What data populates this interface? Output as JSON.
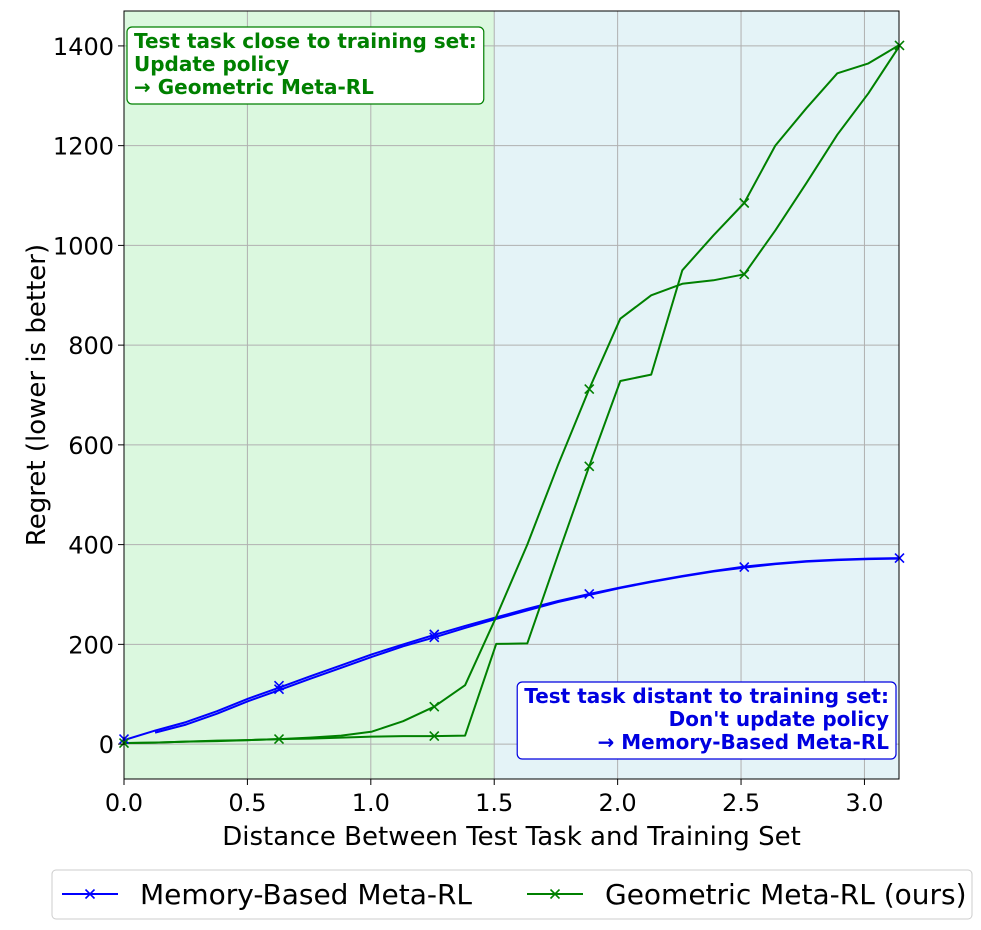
{
  "chart_data": {
    "type": "line",
    "xlabel": "Distance Between Test Task and Training Set",
    "ylabel": "Regret (lower is better)",
    "xlim": [
      0.0,
      3.14
    ],
    "ylim": [
      -70,
      1470
    ],
    "grid": true,
    "xticks": [
      0.0,
      0.5,
      1.0,
      1.5,
      2.0,
      2.5,
      3.0
    ],
    "xtick_labels": [
      "0.0",
      "0.5",
      "1.0",
      "1.5",
      "2.0",
      "2.5",
      "3.0"
    ],
    "yticks": [
      0,
      200,
      400,
      600,
      800,
      1000,
      1200,
      1400
    ],
    "ytick_labels": [
      "0",
      "200",
      "400",
      "600",
      "800",
      "1000",
      "1200",
      "1400"
    ],
    "regions": [
      {
        "x_from": 0.0,
        "x_to": 1.5,
        "color": "#dbf8df"
      },
      {
        "x_from": 1.5,
        "x_to": 3.14,
        "color": "#e4f3f7"
      }
    ],
    "annotations": [
      {
        "lines": [
          "Test task close to training set:",
          "Update policy",
          "→ Geometric Meta-RL"
        ],
        "color": "#008000",
        "position": "top-left"
      },
      {
        "lines": [
          "Test task distant to training set:",
          "Don't update policy",
          "→ Memory-Based Meta-RL"
        ],
        "color": "#0000e0",
        "position": "bottom-right"
      }
    ],
    "legend": {
      "placement": "bottom-outside",
      "ncol": 2
    },
    "series": [
      {
        "name": "Memory-Based Meta-RL",
        "color": "#0000ff",
        "marker": "x",
        "lines": [
          {
            "x": [
              0.0,
              0.126,
              0.251,
              0.377,
              0.503,
              0.628,
              0.754,
              0.88,
              1.005,
              1.131,
              1.257,
              1.382,
              1.508,
              1.634,
              1.759,
              1.885,
              2.011,
              2.136,
              2.262,
              2.388,
              2.513,
              2.639,
              2.765,
              2.89,
              3.016,
              3.142
            ],
            "y": [
              8,
              27,
              44,
              66,
              91,
              113,
              136,
              158,
              180,
              200,
              219,
              237,
              254,
              271,
              287,
              301,
              314,
              326,
              337,
              347,
              356,
              362,
              367,
              370,
              372,
              373
            ]
          },
          {
            "x": [
              0.126,
              0.251,
              0.377,
              0.503,
              0.628,
              0.754,
              0.88,
              1.005,
              1.131,
              1.257,
              1.382,
              1.508,
              1.634,
              1.759,
              1.885,
              2.011,
              2.136,
              2.262,
              2.388,
              2.513,
              2.639,
              2.765,
              2.89,
              3.016,
              3.142
            ],
            "y": [
              23,
              39,
              61,
              86,
              108,
              131,
              153,
              175,
              196,
              214,
              233,
              251,
              268,
              285,
              299,
              313,
              325,
              336,
              346,
              354,
              361,
              366,
              369,
              371,
              372
            ]
          }
        ],
        "marker_points": [
          {
            "x": 0.0,
            "y": 10
          },
          {
            "x": 0.628,
            "y": 117
          },
          {
            "x": 0.628,
            "y": 110
          },
          {
            "x": 1.257,
            "y": 220
          },
          {
            "x": 1.257,
            "y": 214
          },
          {
            "x": 1.885,
            "y": 301
          },
          {
            "x": 2.513,
            "y": 355
          },
          {
            "x": 3.142,
            "y": 373
          }
        ]
      },
      {
        "name": "Geometric Meta-RL (ours)",
        "color": "#008000",
        "marker": "x",
        "lines": [
          {
            "x": [
              0.0,
              0.126,
              0.251,
              0.377,
              0.503,
              0.628,
              0.754,
              0.88,
              1.005,
              1.131,
              1.257,
              1.382,
              1.508,
              1.634,
              1.759,
              1.885,
              2.011,
              2.136,
              2.262,
              2.388,
              2.513,
              2.639,
              2.765,
              2.89,
              3.016,
              3.142
            ],
            "y": [
              2,
              3,
              5,
              7,
              8,
              10,
              13,
              17,
              25,
              46,
              75,
              118,
              255,
              400,
              560,
              712,
              853,
              900,
              923,
              930,
              942,
              1030,
              1125,
              1222,
              1305,
              1400
            ]
          },
          {
            "x": [
              0.0,
              0.126,
              0.251,
              0.377,
              0.503,
              0.628,
              0.754,
              0.88,
              1.005,
              1.131,
              1.257,
              1.382,
              1.508,
              1.634,
              1.759,
              1.885,
              2.011,
              2.136,
              2.262,
              2.388,
              2.513,
              2.639,
              2.765,
              2.89,
              3.016,
              3.142
            ],
            "y": [
              2,
              3,
              5,
              6,
              8,
              10,
              11,
              13,
              15,
              16,
              16,
              17,
              201,
              202,
              380,
              557,
              728,
              741,
              950,
              1020,
              1085,
              1200,
              1275,
              1345,
              1365,
              1402
            ]
          }
        ],
        "marker_points": [
          {
            "x": 0.0,
            "y": 2
          },
          {
            "x": 0.628,
            "y": 10
          },
          {
            "x": 1.257,
            "y": 75
          },
          {
            "x": 1.257,
            "y": 16
          },
          {
            "x": 1.885,
            "y": 712
          },
          {
            "x": 1.885,
            "y": 557
          },
          {
            "x": 2.513,
            "y": 1085
          },
          {
            "x": 2.513,
            "y": 942
          },
          {
            "x": 3.142,
            "y": 1401
          }
        ]
      }
    ]
  }
}
